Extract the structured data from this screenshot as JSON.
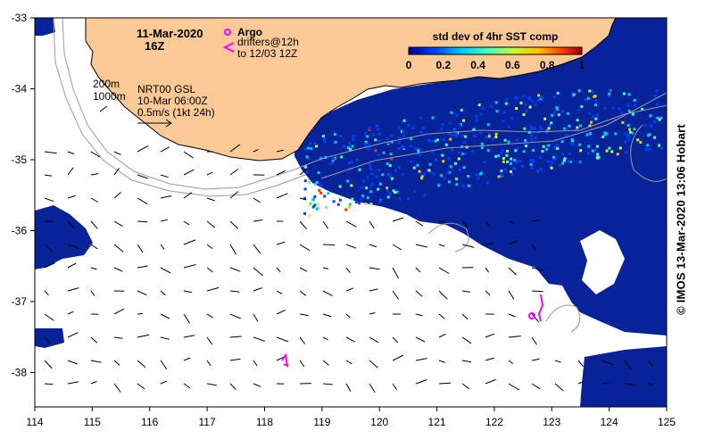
{
  "map": {
    "title_date": "11-Mar-2020",
    "title_hour": "16Z",
    "legend_argo": "Argo",
    "legend_drifters_1": "drifters@12h",
    "legend_drifters_2": "to 12/03 12Z",
    "contour_label_200": "200m",
    "contour_label_1000": "1000m",
    "current_source": "NRT00 GSL",
    "current_time": "10-Mar 06:00Z",
    "current_scale": "0.5m/s (1kt 24h)",
    "colorbar_title": "std dev of 4hr SST comp",
    "colorbar_ticks": [
      "0",
      "0.2",
      "0.4",
      "0.6",
      "0.8",
      "1"
    ],
    "lon_ticks": [
      "114",
      "115",
      "116",
      "117",
      "118",
      "119",
      "120",
      "121",
      "122",
      "123",
      "124",
      "125"
    ],
    "lat_ticks": [
      "-33",
      "-34",
      "-35",
      "-36",
      "-37",
      "-38"
    ],
    "credit": "© IMOS 13-Mar-2020 13:06 Hobart"
  },
  "colors": {
    "land": "#fbc996",
    "ocean_sst": "#08239a",
    "argo_drifter": "#ff00ff",
    "contour": "#aaaaaa"
  },
  "colormap": [
    "#00008f",
    "#0040ff",
    "#00c8ff",
    "#40ffc0",
    "#c0ff40",
    "#ffc000",
    "#ff3000",
    "#8f0000"
  ]
}
